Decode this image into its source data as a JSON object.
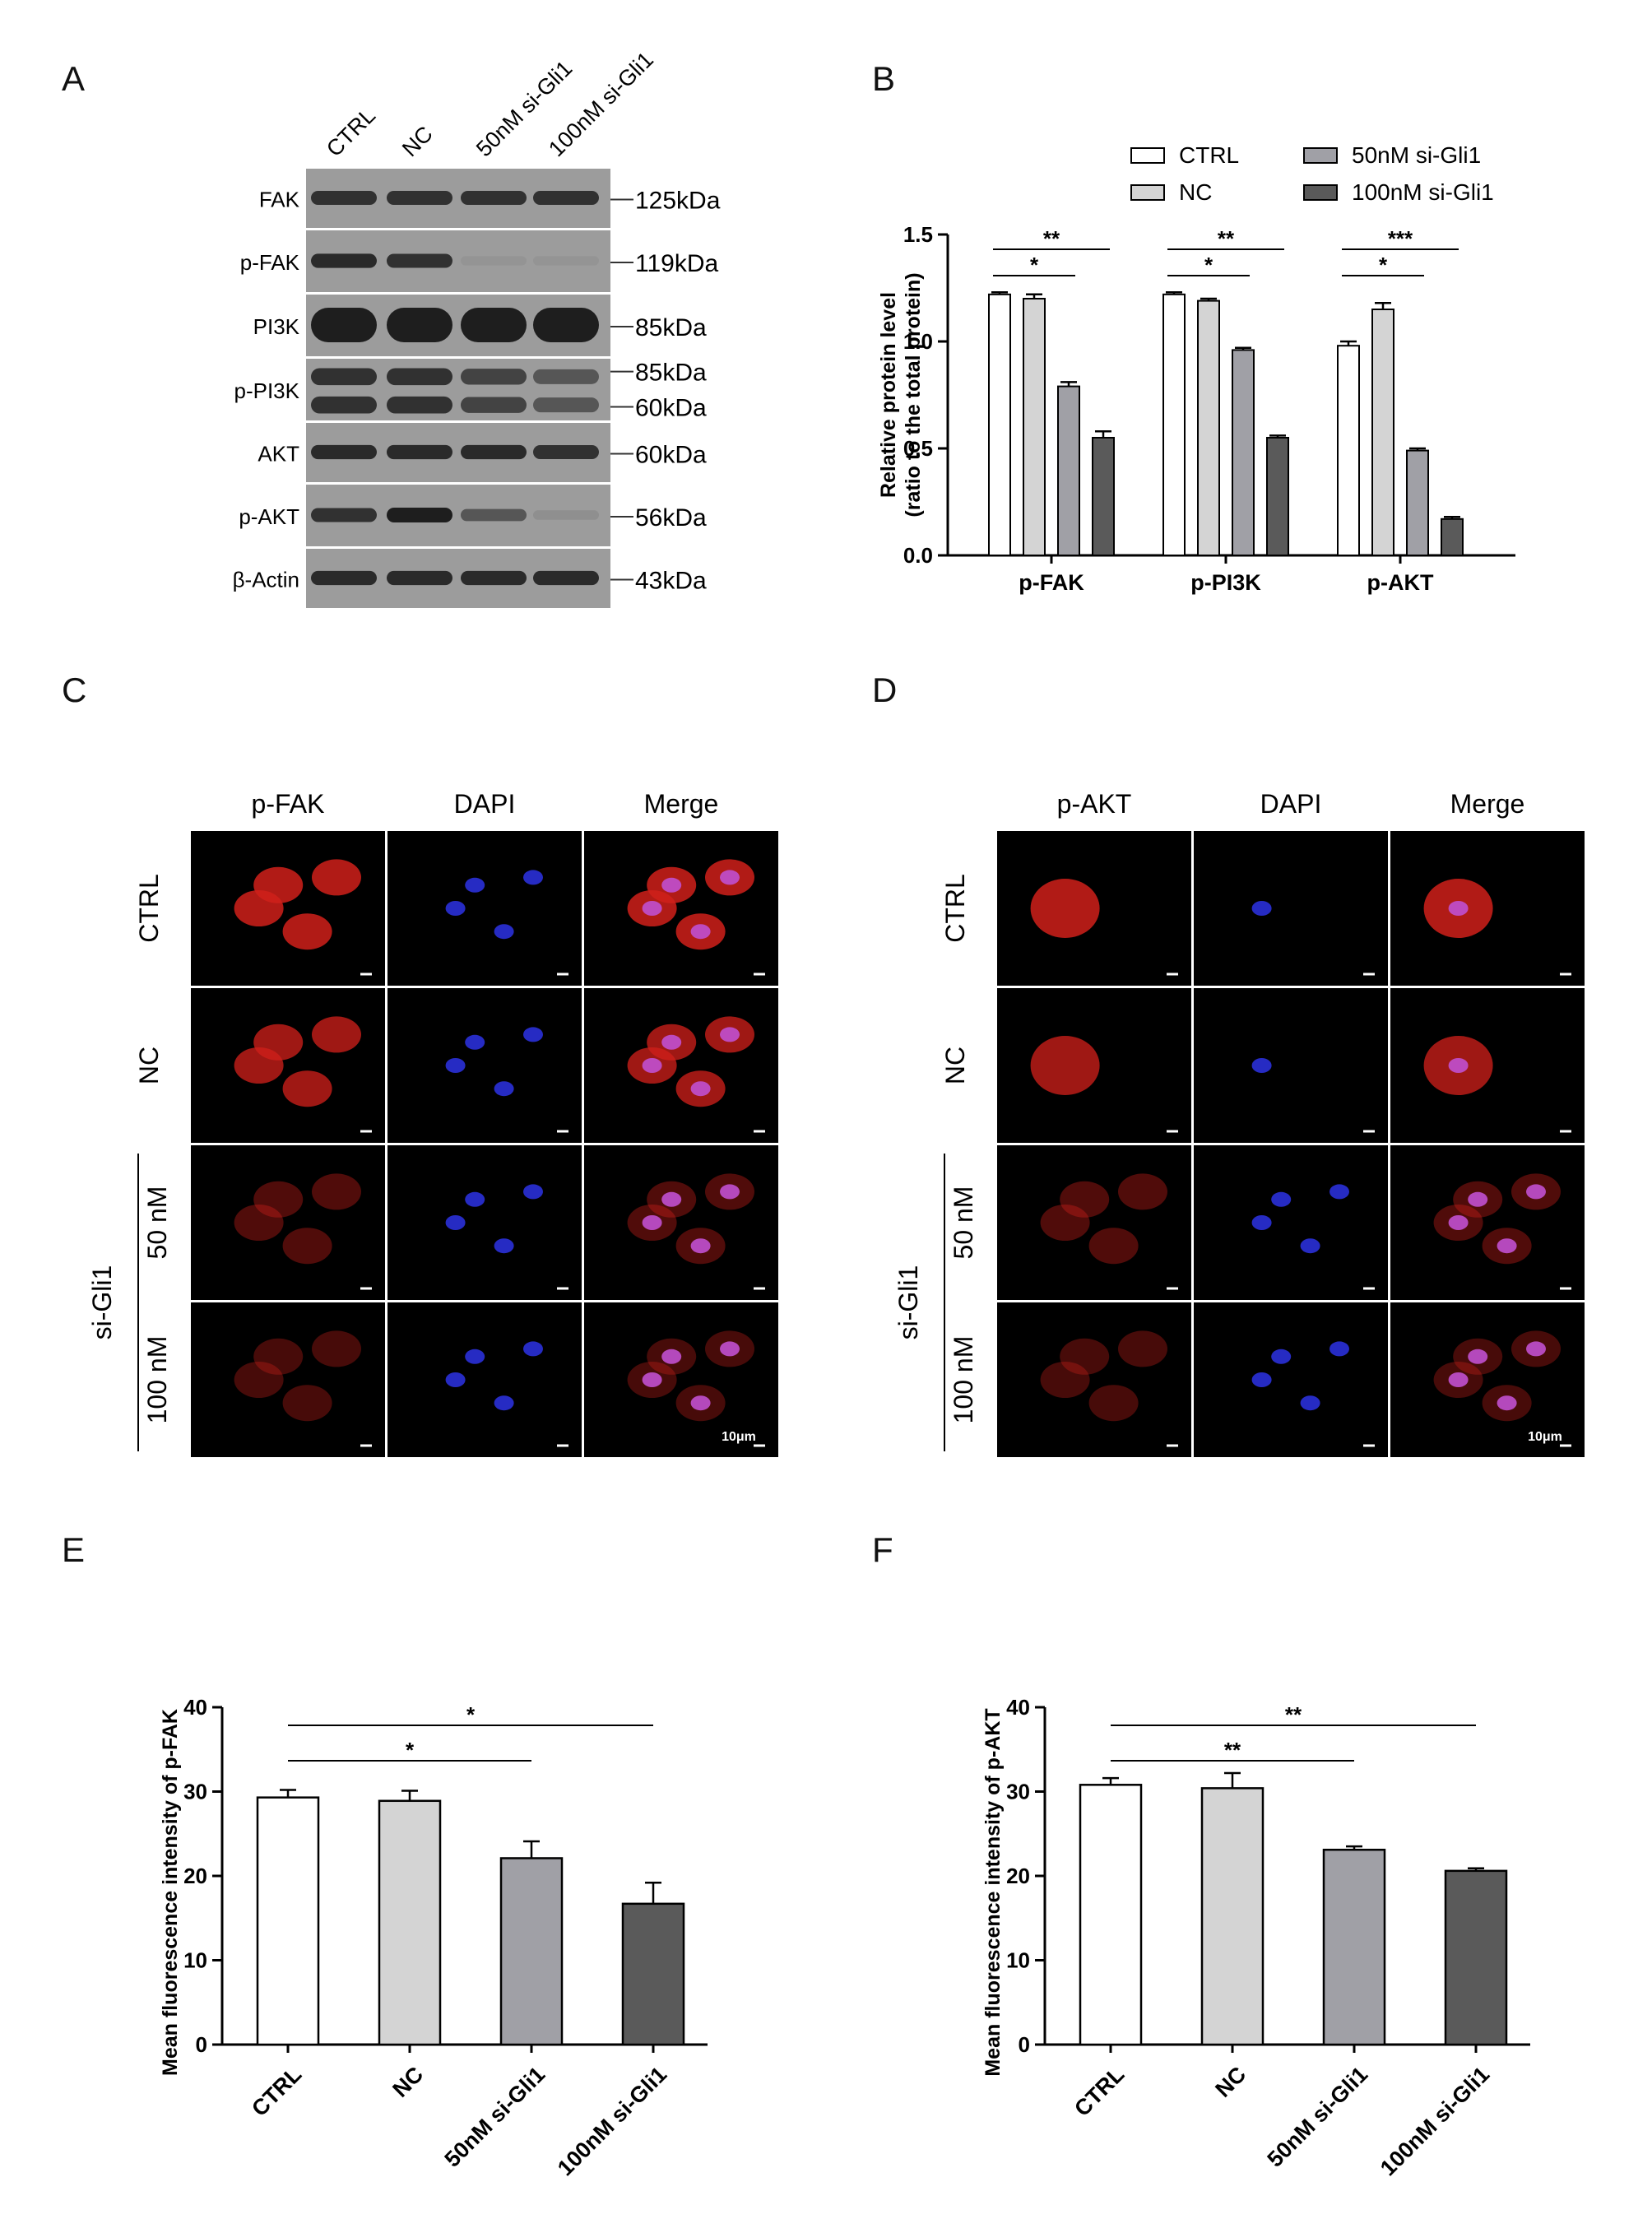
{
  "panels": {
    "A": "A",
    "B": "B",
    "C": "C",
    "D": "D",
    "E": "E",
    "F": "F"
  },
  "colors": {
    "ctrl": "#ffffff",
    "nc": "#d4d4d4",
    "si50": "#a0a0a6",
    "si100": "#5a5a5a",
    "blotBg": "#9c9c9c",
    "band": "#1e1e1e"
  },
  "panelA": {
    "lanes": [
      "CTRL",
      "NC",
      "50nM si-Gli1",
      "100nM si-Gli1"
    ],
    "rows": [
      {
        "label": "FAK",
        "kda": [
          "125kDa"
        ],
        "bands": [
          0.85,
          0.85,
          0.85,
          0.85
        ]
      },
      {
        "label": "p-FAK",
        "kda": [
          "119kDa"
        ],
        "bands": [
          0.9,
          0.85,
          0.05,
          0.05
        ]
      },
      {
        "label": "PI3K",
        "kda": [
          "85kDa"
        ],
        "bands": [
          1,
          1,
          1,
          1
        ]
      },
      {
        "label": "p-PI3K",
        "kda": [
          "85kDa",
          "60kDa"
        ],
        "bands": [
          0.85,
          0.85,
          0.7,
          0.55
        ]
      },
      {
        "label": "AKT",
        "kda": [
          "60kDa"
        ],
        "bands": [
          0.9,
          0.9,
          0.9,
          0.85
        ]
      },
      {
        "label": "p-AKT",
        "kda": [
          "56kDa"
        ],
        "bands": [
          0.85,
          1,
          0.55,
          0.1
        ]
      },
      {
        "label": "β-Actin",
        "kda": [
          "43kDa"
        ],
        "bands": [
          0.9,
          0.9,
          0.9,
          0.9
        ]
      }
    ]
  },
  "chart_data": [
    {
      "type": "bar",
      "panel": "B",
      "categories": [
        "p-FAK",
        "p-PI3K",
        "p-AKT"
      ],
      "series": [
        {
          "name": "CTRL",
          "values": [
            1.22,
            1.22,
            0.98
          ],
          "errors": [
            0.01,
            0.01,
            0.02
          ]
        },
        {
          "name": "NC",
          "values": [
            1.2,
            1.19,
            1.15
          ],
          "errors": [
            0.02,
            0.01,
            0.03
          ]
        },
        {
          "name": "50nM si-Gli1",
          "values": [
            0.79,
            0.96,
            0.49
          ],
          "errors": [
            0.02,
            0.01,
            0.01
          ]
        },
        {
          "name": "100nM si-Gli1",
          "values": [
            0.55,
            0.55,
            0.17
          ],
          "errors": [
            0.03,
            0.01,
            0.01
          ]
        }
      ],
      "ylabel": "Relative protein level",
      "ylabel2": "(ratio to the total protein)",
      "ylim": [
        0,
        1.5
      ],
      "yticks": [
        "0.0",
        "0.5",
        "1.0",
        "1.5"
      ],
      "legend": "top",
      "significance": [
        {
          "group": 0,
          "from": 0,
          "to": 2,
          "label": "*"
        },
        {
          "group": 0,
          "from": 0,
          "to": 3,
          "label": "**"
        },
        {
          "group": 1,
          "from": 0,
          "to": 2,
          "label": "*"
        },
        {
          "group": 1,
          "from": 0,
          "to": 3,
          "label": "**"
        },
        {
          "group": 2,
          "from": 0,
          "to": 2,
          "label": "*"
        },
        {
          "group": 2,
          "from": 0,
          "to": 3,
          "label": "***"
        }
      ]
    },
    {
      "type": "bar",
      "panel": "E",
      "categories": [
        "CTRL",
        "NC",
        "50nM si-Gli1",
        "100nM si-Gli1"
      ],
      "values": [
        29.3,
        28.9,
        22.1,
        16.7
      ],
      "errors": [
        0.9,
        1.2,
        2.0,
        2.5
      ],
      "ylabel": "Mean fluorescence intensity of p-FAK",
      "ylim": [
        0,
        40
      ],
      "yticks": [
        "0",
        "10",
        "20",
        "30",
        "40"
      ],
      "significance": [
        {
          "from": 0,
          "to": 2,
          "label": "*"
        },
        {
          "from": 0,
          "to": 3,
          "label": "*"
        }
      ]
    },
    {
      "type": "bar",
      "panel": "F",
      "categories": [
        "CTRL",
        "NC",
        "50nM si-Gli1",
        "100nM si-Gli1"
      ],
      "values": [
        30.8,
        30.4,
        23.1,
        20.6
      ],
      "errors": [
        0.8,
        1.8,
        0.4,
        0.3
      ],
      "ylabel": "Mean fluorescence intensity of p-AKT",
      "ylim": [
        0,
        40
      ],
      "yticks": [
        "0",
        "10",
        "20",
        "30",
        "40"
      ],
      "significance": [
        {
          "from": 0,
          "to": 2,
          "label": "**"
        },
        {
          "from": 0,
          "to": 3,
          "label": "**"
        }
      ]
    }
  ],
  "panelC": {
    "columns": [
      "p-FAK",
      "DAPI",
      "Merge"
    ],
    "rows": [
      "CTRL",
      "NC",
      "50 nM",
      "100 nM"
    ],
    "group": "si-Gli1",
    "scalebar": "10μm"
  },
  "panelD": {
    "columns": [
      "p-AKT",
      "DAPI",
      "Merge"
    ],
    "rows": [
      "CTRL",
      "NC",
      "50 nM",
      "100 nM"
    ],
    "group": "si-Gli1",
    "scalebar": "10μm"
  }
}
